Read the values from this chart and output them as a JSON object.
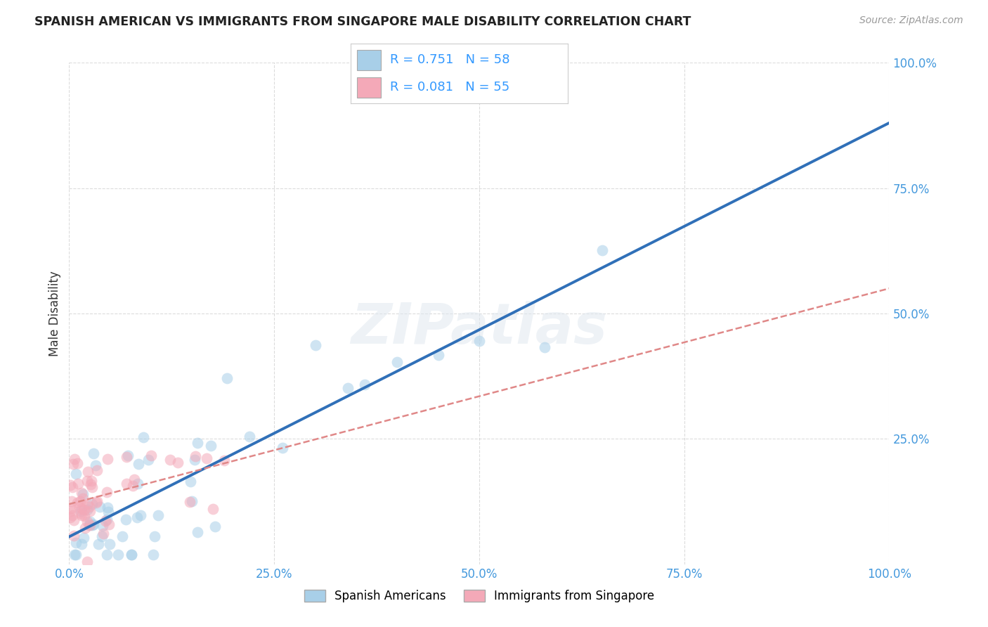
{
  "title": "SPANISH AMERICAN VS IMMIGRANTS FROM SINGAPORE MALE DISABILITY CORRELATION CHART",
  "source": "Source: ZipAtlas.com",
  "ylabel": "Male Disability",
  "xlim": [
    0,
    1.0
  ],
  "ylim": [
    0,
    1.0
  ],
  "xticks": [
    0.0,
    0.25,
    0.5,
    0.75,
    1.0
  ],
  "yticks": [
    0.25,
    0.5,
    0.75,
    1.0
  ],
  "xticklabels": [
    "0.0%",
    "25.0%",
    "50.0%",
    "75.0%",
    "100.0%"
  ],
  "yticklabels": [
    "25.0%",
    "50.0%",
    "75.0%",
    "100.0%"
  ],
  "blue_R": 0.751,
  "blue_N": 58,
  "pink_R": 0.081,
  "pink_N": 55,
  "blue_color": "#a8cfe8",
  "pink_color": "#f4a9b8",
  "blue_line_color": "#3070b8",
  "pink_line_color": "#e08888",
  "background_color": "#ffffff",
  "grid_color": "#cccccc",
  "watermark": "ZIPatlas",
  "legend_label_blue": "Spanish Americans",
  "legend_label_pink": "Immigrants from Singapore",
  "blue_line_x0": 0.0,
  "blue_line_y0": 0.055,
  "blue_line_x1": 1.0,
  "blue_line_y1": 0.88,
  "pink_line_x0": 0.0,
  "pink_line_y0": 0.12,
  "pink_line_x1": 1.0,
  "pink_line_y1": 0.55
}
